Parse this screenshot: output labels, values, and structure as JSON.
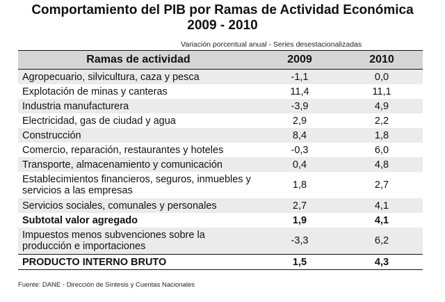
{
  "title": {
    "line1": "Comportamiento del PIB por Ramas de Actividad Económica",
    "line2": "2009 - 2010"
  },
  "subtitle": "Variación porcentual anual - Series desestacionalizadas",
  "table": {
    "headers": [
      "Ramas de actividad",
      "2009",
      "2010"
    ],
    "rows": [
      {
        "label": "Agropecuario, silvicultura, caza y pesca",
        "v2009": "-1,1",
        "v2010": "0,0"
      },
      {
        "label": "Explotación de minas y canteras",
        "v2009": "11,4",
        "v2010": "11,1"
      },
      {
        "label": "Industria manufacturera",
        "v2009": "-3,9",
        "v2010": "4,9"
      },
      {
        "label": "Electricidad, gas de ciudad y agua",
        "v2009": "2,9",
        "v2010": "2,2"
      },
      {
        "label": "Construcción",
        "v2009": "8,4",
        "v2010": "1,8"
      },
      {
        "label": "Comercio, reparación, restaurantes y hoteles",
        "v2009": "-0,3",
        "v2010": "6,0"
      },
      {
        "label": "Transporte, almacenamiento y comunicación",
        "v2009": "0,4",
        "v2010": "4,8"
      },
      {
        "label": "Establecimientos financieros, seguros, inmuebles y servicios a las empresas",
        "v2009": "1,8",
        "v2010": "2,7"
      },
      {
        "label": "Servicios sociales, comunales y personales",
        "v2009": "2,7",
        "v2010": "4,1"
      },
      {
        "label": "Subtotal valor agregado",
        "v2009": "1,9",
        "v2010": "4,1"
      },
      {
        "label": "Impuestos menos subvenciones sobre la producción e importaciones",
        "v2009": "-3,3",
        "v2010": "6,2"
      },
      {
        "label": "PRODUCTO INTERNO BRUTO",
        "v2009": "1,5",
        "v2010": "4,3"
      }
    ]
  },
  "source": "Fuente: DANE - Dirección de Síntesis y Cuentas Nacionales"
}
